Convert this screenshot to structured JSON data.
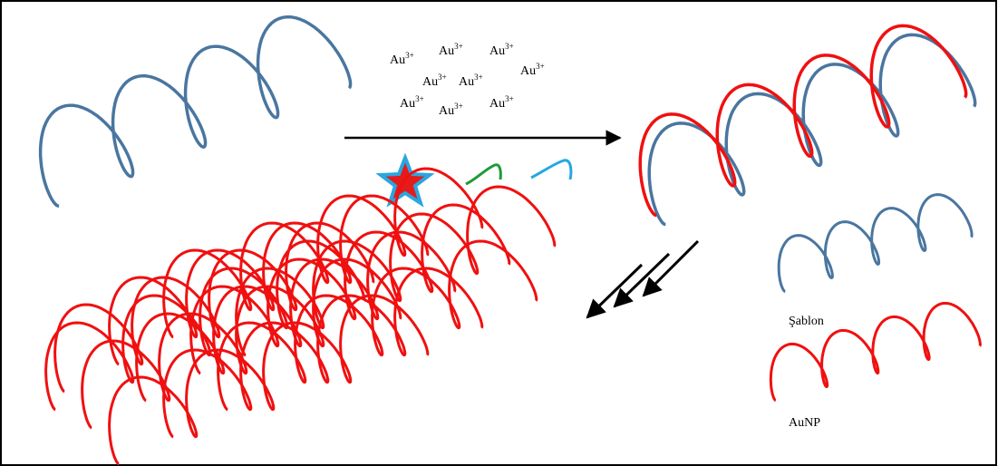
{
  "ions": [
    {
      "base": "Au",
      "charge": "3+"
    },
    {
      "base": "Au",
      "charge": "3+"
    },
    {
      "base": "Au",
      "charge": "3+"
    },
    {
      "base": "Au",
      "charge": "3+"
    },
    {
      "base": "Au",
      "charge": "3+"
    },
    {
      "base": "Au",
      "charge": "3+"
    },
    {
      "base": "Au",
      "charge": "3+"
    },
    {
      "base": "Au",
      "charge": "3+"
    },
    {
      "base": "Au",
      "charge": "3+"
    }
  ],
  "legend": {
    "template": "Şablon",
    "product": "AuNP"
  }
}
